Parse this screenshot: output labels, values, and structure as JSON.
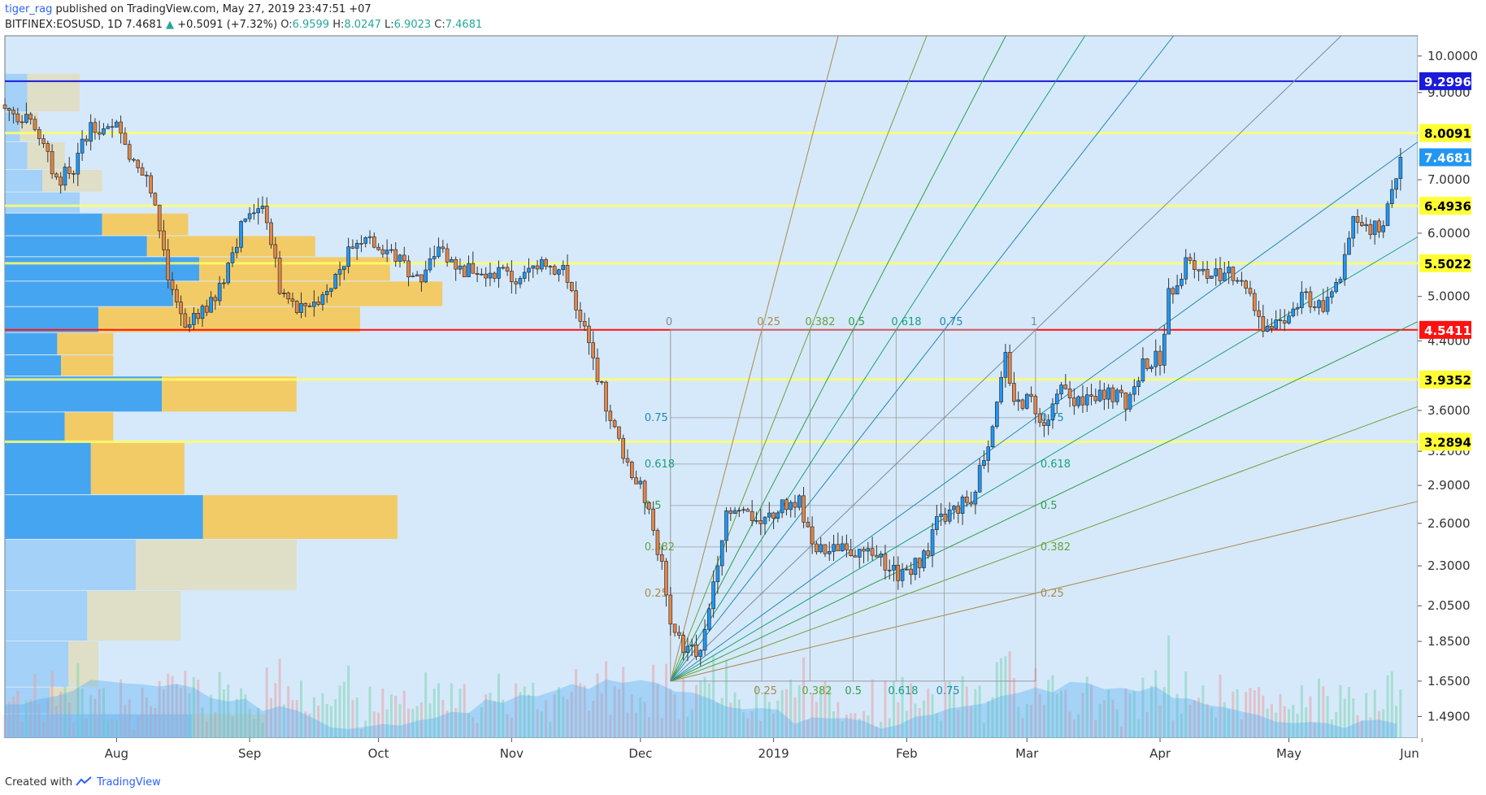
{
  "header": {
    "author": "tiger_rag",
    "published": "published on TradingView.com, May 27, 2019 23:47:51 +07",
    "symbol": "BITFINEX:EOSUSD, 1D",
    "last": "7.4681",
    "change_arrow": "▲",
    "change": "+0.5091 (+7.32%)",
    "o_label": "O:",
    "o": "6.9599",
    "h_label": "H:",
    "h": "8.0247",
    "l_label": "L:",
    "l": "6.9023",
    "c_label": "C:",
    "c": "7.4681"
  },
  "footer": {
    "created_with": "Created with",
    "brand": "TradingView",
    "logo_icon": "tradingview-logo-icon"
  },
  "colors": {
    "background": "#d6e9fb",
    "up": "#2196f3",
    "down": "#e0864a",
    "yellow_line": "#ffff66",
    "red_line": "#ff1111",
    "blue_line": "#1a1adb",
    "vp_up": "#46a5f0",
    "vp_down": "#f2cb67"
  },
  "chart_data": {
    "type": "candlestick",
    "symbol": "BITFINEX:EOSUSD",
    "interval": "1D",
    "x_ticks": [
      "Aug",
      "Sep",
      "Oct",
      "Nov",
      "Dec",
      "2019",
      "Feb",
      "Mar",
      "Apr",
      "May",
      "Jun"
    ],
    "y_ticks": [
      "10.0000",
      "9.0000",
      "7.0000",
      "6.0000",
      "5.0000",
      "4.4000",
      "3.6000",
      "3.2000",
      "2.9000",
      "2.6000",
      "2.3000",
      "2.0500",
      "1.8500",
      "1.6500",
      "1.4900"
    ],
    "y_scale": "log",
    "y_range": [
      1.4,
      10.6
    ],
    "x_range": [
      "2018-07-06",
      "2019-05-31"
    ],
    "horizontal_levels": [
      {
        "value": "9.2996",
        "color": "blue"
      },
      {
        "value": "8.0091",
        "color": "yellow"
      },
      {
        "value": "7.4681",
        "color": "last-price"
      },
      {
        "value": "6.4936",
        "color": "yellow"
      },
      {
        "value": "5.5022",
        "color": "yellow"
      },
      {
        "value": "4.5411",
        "color": "red"
      },
      {
        "value": "3.9352",
        "color": "yellow"
      },
      {
        "value": "3.2894",
        "color": "yellow"
      }
    ],
    "price_path": [
      [
        "2018-07-06",
        8.6
      ],
      [
        "2018-07-10",
        8.4
      ],
      [
        "2018-07-14",
        7.9
      ],
      [
        "2018-07-18",
        7.0
      ],
      [
        "2018-07-22",
        7.2
      ],
      [
        "2018-07-26",
        8.3
      ],
      [
        "2018-07-30",
        8.0
      ],
      [
        "2018-08-02",
        8.2
      ],
      [
        "2018-08-05",
        7.3
      ],
      [
        "2018-08-08",
        7.0
      ],
      [
        "2018-08-11",
        6.1
      ],
      [
        "2018-08-14",
        5.0
      ],
      [
        "2018-08-17",
        4.5
      ],
      [
        "2018-08-20",
        4.8
      ],
      [
        "2018-08-24",
        4.9
      ],
      [
        "2018-08-28",
        5.7
      ],
      [
        "2018-09-01",
        6.5
      ],
      [
        "2018-09-05",
        6.3
      ],
      [
        "2018-09-08",
        5.1
      ],
      [
        "2018-09-12",
        4.8
      ],
      [
        "2018-09-17",
        5.0
      ],
      [
        "2018-09-21",
        5.3
      ],
      [
        "2018-09-25",
        5.8
      ],
      [
        "2018-09-28",
        6.0
      ],
      [
        "2018-10-05",
        5.6
      ],
      [
        "2018-10-11",
        5.2
      ],
      [
        "2018-10-15",
        5.8
      ],
      [
        "2018-10-20",
        5.4
      ],
      [
        "2018-10-28",
        5.4
      ],
      [
        "2018-11-03",
        5.2
      ],
      [
        "2018-11-08",
        5.6
      ],
      [
        "2018-11-14",
        5.3
      ],
      [
        "2018-11-18",
        4.5
      ],
      [
        "2018-11-21",
        4.0
      ],
      [
        "2018-11-24",
        3.5
      ],
      [
        "2018-11-28",
        3.1
      ],
      [
        "2018-12-02",
        2.8
      ],
      [
        "2018-12-06",
        2.3
      ],
      [
        "2018-12-08",
        1.9
      ],
      [
        "2018-12-12",
        1.8
      ],
      [
        "2018-12-15",
        1.8
      ],
      [
        "2018-12-18",
        2.2
      ],
      [
        "2018-12-21",
        2.7
      ],
      [
        "2018-12-25",
        2.7
      ],
      [
        "2018-12-29",
        2.6
      ],
      [
        "2019-01-02",
        2.7
      ],
      [
        "2019-01-07",
        2.8
      ],
      [
        "2019-01-10",
        2.4
      ],
      [
        "2019-01-15",
        2.4
      ],
      [
        "2019-01-20",
        2.4
      ],
      [
        "2019-01-25",
        2.35
      ],
      [
        "2019-01-30",
        2.25
      ],
      [
        "2019-02-05",
        2.35
      ],
      [
        "2019-02-08",
        2.6
      ],
      [
        "2019-02-12",
        2.7
      ],
      [
        "2019-02-16",
        2.8
      ],
      [
        "2019-02-20",
        3.3
      ],
      [
        "2019-02-24",
        4.2
      ],
      [
        "2019-02-26",
        3.7
      ],
      [
        "2019-03-02",
        3.7
      ],
      [
        "2019-03-05",
        3.5
      ],
      [
        "2019-03-09",
        3.8
      ],
      [
        "2019-03-14",
        3.7
      ],
      [
        "2019-03-19",
        3.8
      ],
      [
        "2019-03-24",
        3.7
      ],
      [
        "2019-03-28",
        4.1
      ],
      [
        "2019-04-01",
        4.2
      ],
      [
        "2019-04-03",
        5.0
      ],
      [
        "2019-04-08",
        5.6
      ],
      [
        "2019-04-12",
        5.3
      ],
      [
        "2019-04-17",
        5.4
      ],
      [
        "2019-04-21",
        5.2
      ],
      [
        "2019-04-25",
        4.6
      ],
      [
        "2019-04-30",
        4.7
      ],
      [
        "2019-05-05",
        5.0
      ],
      [
        "2019-05-09",
        4.8
      ],
      [
        "2019-05-13",
        5.3
      ],
      [
        "2019-05-16",
        6.2
      ],
      [
        "2019-05-20",
        6.0
      ],
      [
        "2019-05-23",
        6.2
      ],
      [
        "2019-05-25",
        6.9
      ],
      [
        "2019-05-27",
        7.47
      ]
    ],
    "fib_fan": {
      "origin": [
        "2018-12-08",
        1.65
      ],
      "end": [
        "2019-03-03",
        4.54
      ],
      "levels": [
        "0",
        "0.25",
        "0.382",
        "0.5",
        "0.618",
        "0.75",
        "1"
      ],
      "vertical_labels": [
        "0.75",
        "0.618",
        "0.5",
        "0.382",
        "0.25"
      ]
    },
    "volume_profile": [
      {
        "low": 1.36,
        "high": 1.5,
        "up": 0.5,
        "down": 0.2,
        "faded": true
      },
      {
        "low": 1.5,
        "high": 1.62,
        "up": 0.12,
        "down": 0.08,
        "faded": true
      },
      {
        "low": 1.62,
        "high": 1.85,
        "up": 0.17,
        "down": 0.08,
        "faded": true
      },
      {
        "low": 1.85,
        "high": 2.14,
        "up": 0.22,
        "down": 0.25,
        "faded": true
      },
      {
        "low": 2.14,
        "high": 2.48,
        "up": 0.35,
        "down": 0.43,
        "faded": true
      },
      {
        "low": 2.48,
        "high": 2.82,
        "up": 0.53,
        "down": 0.52,
        "faded": false
      },
      {
        "low": 2.82,
        "high": 3.28,
        "up": 0.23,
        "down": 0.25,
        "faded": false
      },
      {
        "low": 3.28,
        "high": 3.58,
        "up": 0.16,
        "down": 0.13,
        "faded": false
      },
      {
        "low": 3.58,
        "high": 3.97,
        "up": 0.42,
        "down": 0.36,
        "faded": false
      },
      {
        "low": 3.97,
        "high": 4.22,
        "up": 0.15,
        "down": 0.14,
        "faded": false
      },
      {
        "low": 4.22,
        "high": 4.5,
        "up": 0.14,
        "down": 0.15,
        "faded": false
      },
      {
        "low": 4.5,
        "high": 4.85,
        "up": 0.25,
        "down": 0.7,
        "faded": false
      },
      {
        "low": 4.85,
        "high": 5.22,
        "up": 0.45,
        "down": 0.72,
        "faded": false
      },
      {
        "low": 5.22,
        "high": 5.6,
        "up": 0.52,
        "down": 0.51,
        "faded": false
      },
      {
        "low": 5.6,
        "high": 5.95,
        "up": 0.38,
        "down": 0.45,
        "faded": false
      },
      {
        "low": 5.95,
        "high": 6.35,
        "up": 0.26,
        "down": 0.23,
        "faded": false
      },
      {
        "low": 6.35,
        "high": 6.75,
        "up": 0.2,
        "down": 0.0,
        "faded": true
      },
      {
        "low": 6.75,
        "high": 7.2,
        "up": 0.1,
        "down": 0.16,
        "faded": true
      },
      {
        "low": 7.2,
        "high": 7.8,
        "up": 0.06,
        "down": 0.1,
        "faded": true
      },
      {
        "low": 7.8,
        "high": 8.5,
        "up": 0.04,
        "down": 0.05,
        "faded": true
      },
      {
        "low": 8.5,
        "high": 9.5,
        "up": 0.06,
        "down": 0.14,
        "faded": true
      }
    ]
  }
}
